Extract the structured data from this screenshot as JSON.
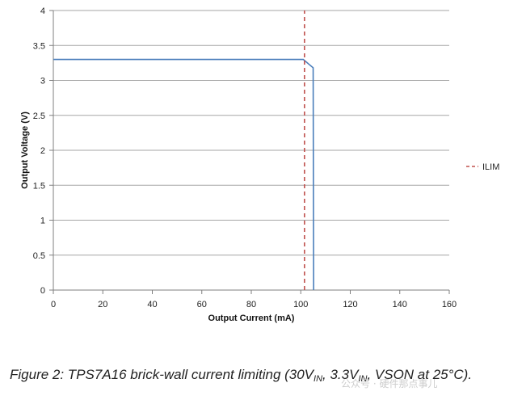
{
  "chart_data": {
    "type": "line",
    "xlabel": "Output Current (mA)",
    "ylabel": "Output Voltage (V)",
    "xlim": [
      0,
      160
    ],
    "ylim": [
      0,
      4
    ],
    "x_ticks": [
      "0",
      "20",
      "40",
      "60",
      "80",
      "100",
      "120",
      "140",
      "160"
    ],
    "y_ticks": [
      "0",
      "0.5",
      "1",
      "1.5",
      "2",
      "2.5",
      "3",
      "3.5",
      "4"
    ],
    "grid": "horizontal",
    "legend_position": "right",
    "series": [
      {
        "name": "",
        "color": "#4a7ebb",
        "style": "solid",
        "x": [
          0,
          101,
          105,
          105.2
        ],
        "y": [
          3.3,
          3.3,
          3.18,
          0
        ]
      },
      {
        "name": "ILIM",
        "color": "#c0504d",
        "style": "dashed",
        "x": [
          101.5,
          101.5
        ],
        "y": [
          0,
          4
        ]
      }
    ]
  },
  "caption": {
    "part1": "Figure 2: TPS7A16 brick-wall current limiting (30V",
    "sub1": "IN",
    "part2": ", 3.3V",
    "sub2": "IN",
    "part3": ", VSON at 25°C)."
  },
  "watermark": "公众号 · 硬件那点事儿"
}
